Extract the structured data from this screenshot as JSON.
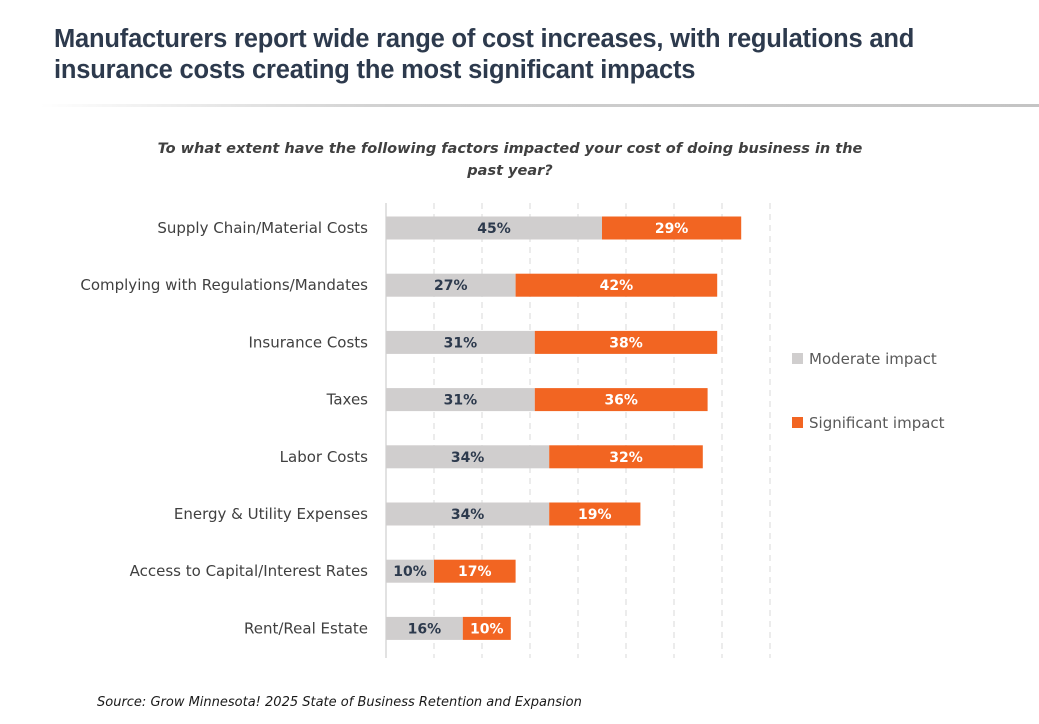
{
  "header": {
    "title": "Manufacturers report wide range of cost increases, with regulations and insurance costs creating the most significant impacts"
  },
  "chart_data": {
    "type": "bar",
    "orientation": "horizontal",
    "stacked": true,
    "title": "To what extent have the following factors impacted your cost of doing business in the past year?",
    "xlabel": "",
    "ylabel": "",
    "xlim": [
      0,
      80
    ],
    "grid": true,
    "legend_position": "right",
    "categories": [
      "Supply Chain/Material Costs",
      "Complying with Regulations/Mandates",
      "Insurance Costs",
      "Taxes",
      "Labor Costs",
      "Energy & Utility Expenses",
      "Access to Capital/Interest Rates",
      "Rent/Real Estate"
    ],
    "series": [
      {
        "name": "Moderate impact",
        "color": "#d0cece",
        "label_color": "#2d3a4d",
        "values": [
          45,
          27,
          31,
          31,
          34,
          34,
          10,
          16
        ]
      },
      {
        "name": "Significant impact",
        "color": "#f26522",
        "label_color": "#ffffff",
        "values": [
          29,
          42,
          38,
          36,
          32,
          19,
          17,
          10
        ]
      }
    ],
    "value_suffix": "%"
  },
  "footer": {
    "source": "Source: Grow Minnesota! 2025 State of Business Retention and Expansion"
  }
}
